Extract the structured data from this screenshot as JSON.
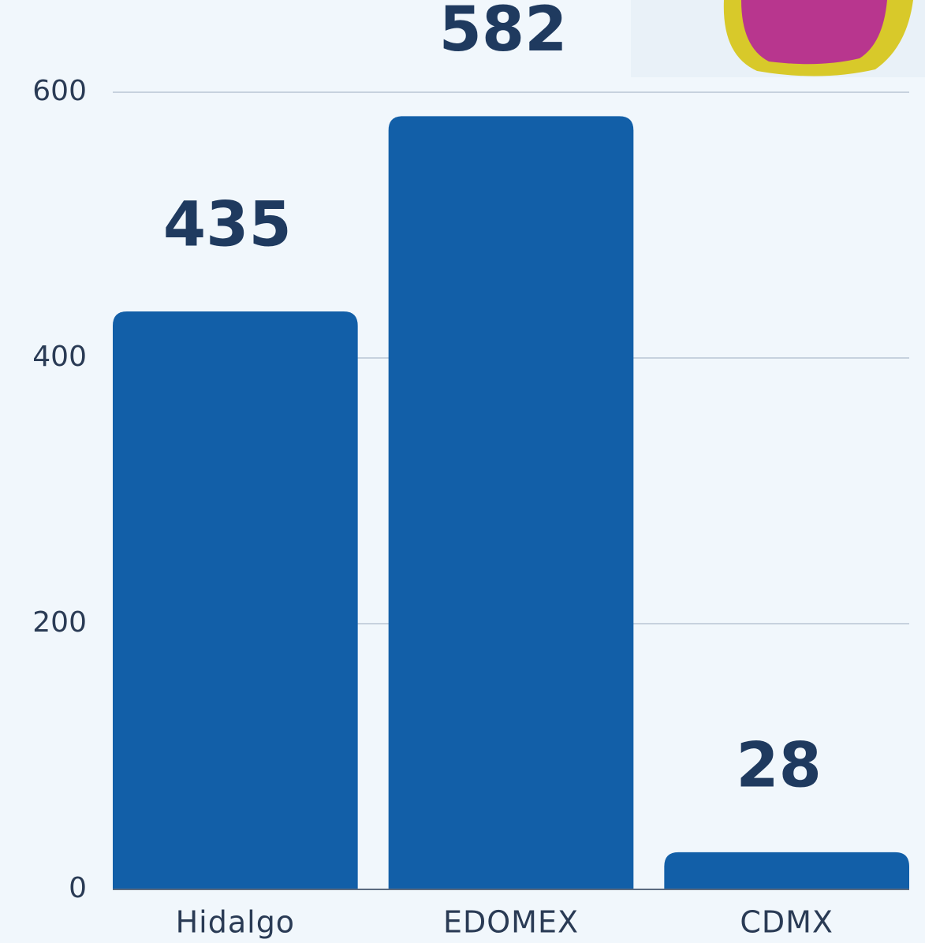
{
  "chart_data": {
    "type": "bar",
    "categories": [
      "Hidalgo",
      "EDOMEX",
      "CDMX"
    ],
    "values": [
      435,
      582,
      28
    ],
    "color": "#125fa8",
    "ylim": [
      0,
      600
    ],
    "yticks": [
      0,
      200,
      400,
      600
    ],
    "grid": true
  }
}
